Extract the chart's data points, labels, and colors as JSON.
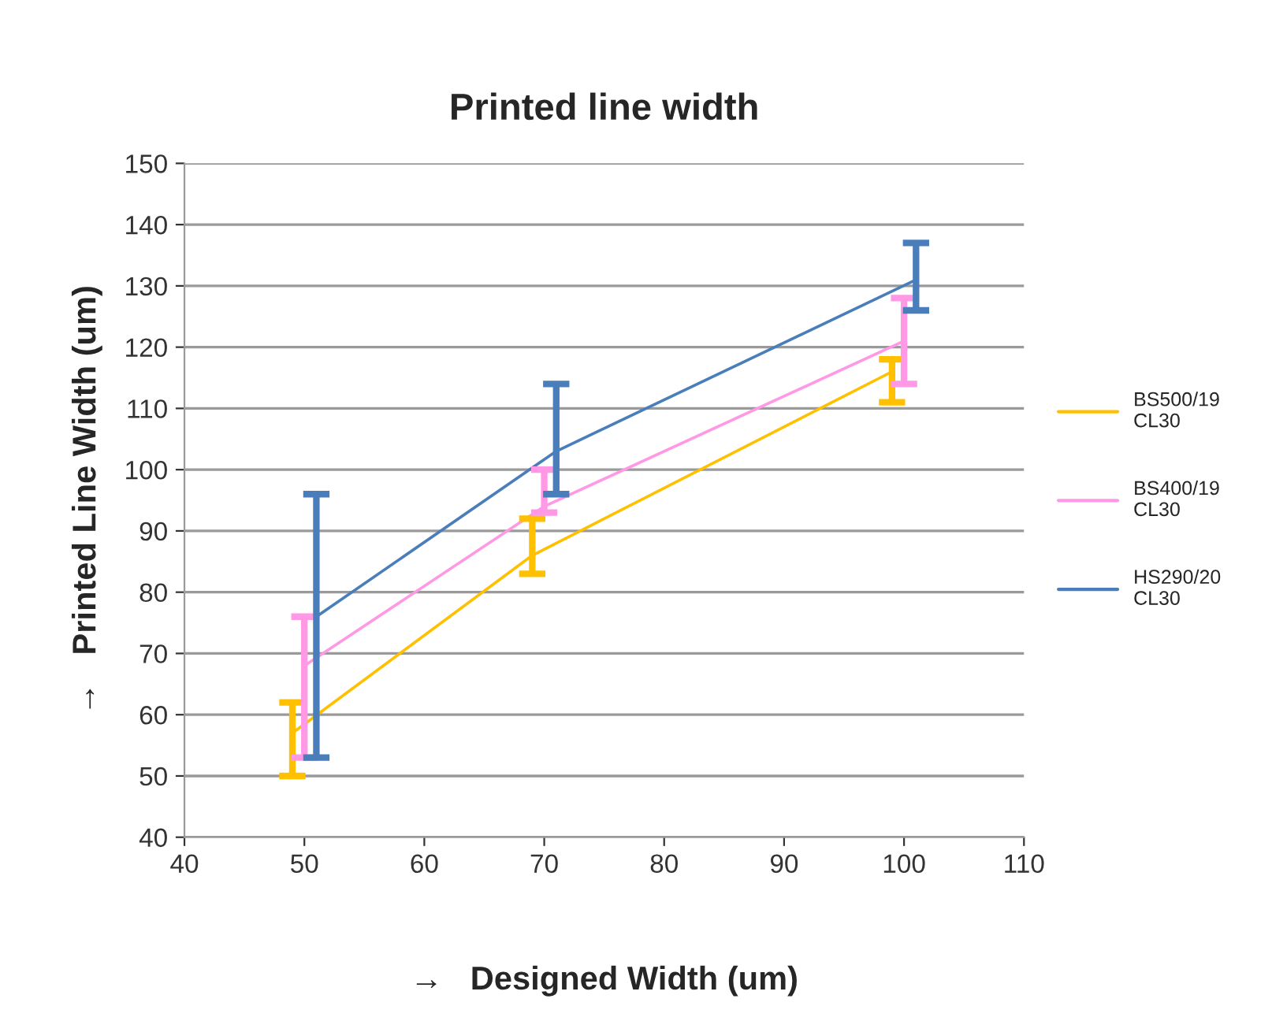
{
  "chart_data": {
    "type": "line",
    "title": "Printed line width",
    "xlabel": "→   Designed Width (um)",
    "ylabel": "→   Printed Line Width (um)",
    "series": [
      {
        "name": "BS500/19\nCL30",
        "color": "#ffc000",
        "x": [
          49,
          69,
          99
        ],
        "values": [
          57,
          86,
          116
        ],
        "errors": [
          [
            50,
            62
          ],
          [
            83,
            92
          ],
          [
            111,
            118
          ]
        ]
      },
      {
        "name": "BS400/19\nCL30",
        "color": "#ff99e6",
        "x": [
          50,
          70,
          100
        ],
        "values": [
          68,
          94,
          121
        ],
        "errors": [
          [
            53,
            76
          ],
          [
            93,
            100
          ],
          [
            114,
            128
          ]
        ]
      },
      {
        "name": "HS290/20\nCL30",
        "color": "#4a7ebb",
        "x": [
          51,
          71,
          101
        ],
        "values": [
          76,
          103,
          131
        ],
        "errors": [
          [
            53,
            96
          ],
          [
            96,
            114
          ],
          [
            126,
            137
          ]
        ]
      }
    ],
    "xlim": [
      40,
      110
    ],
    "xticks": [
      40,
      50,
      60,
      70,
      80,
      90,
      100,
      110
    ],
    "ylim": [
      40,
      150
    ],
    "yticks": [
      40,
      50,
      60,
      70,
      80,
      90,
      100,
      110,
      120,
      130,
      140,
      150
    ],
    "grid": "y",
    "legend": "right",
    "marker": "none",
    "line_style": "solid"
  }
}
